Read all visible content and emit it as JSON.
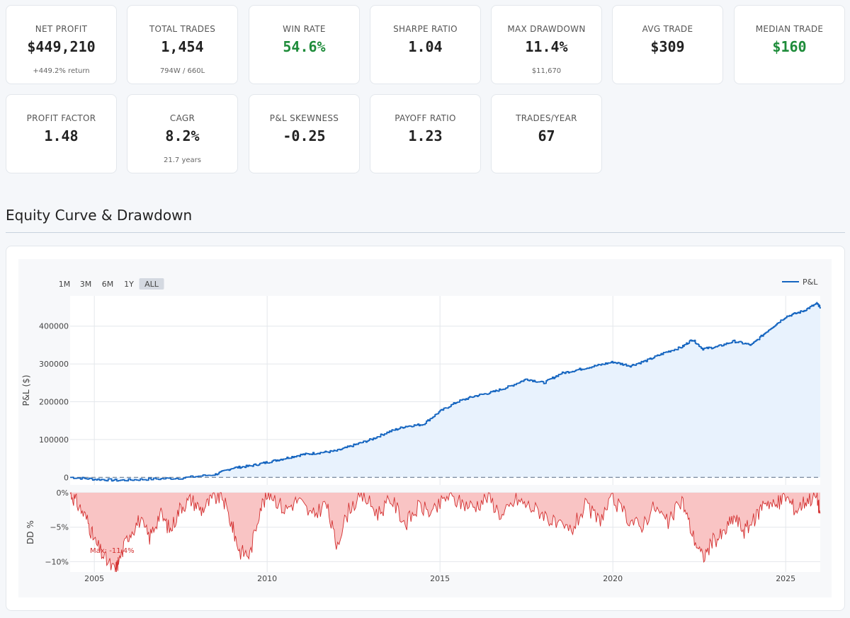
{
  "metrics_row1": [
    {
      "key": "net-profit",
      "label": "NET PROFIT",
      "value": "$449,210",
      "sub": "+449.2% return",
      "color": ""
    },
    {
      "key": "total-trades",
      "label": "TOTAL TRADES",
      "value": "1,454",
      "sub": "794W / 660L",
      "color": ""
    },
    {
      "key": "win-rate",
      "label": "WIN RATE",
      "value": "54.6%",
      "sub": "",
      "color": "green"
    },
    {
      "key": "sharpe-ratio",
      "label": "SHARPE RATIO",
      "value": "1.04",
      "sub": "",
      "color": ""
    },
    {
      "key": "max-drawdown",
      "label": "MAX DRAWDOWN",
      "value": "11.4%",
      "sub": "$11,670",
      "color": ""
    },
    {
      "key": "avg-trade",
      "label": "AVG TRADE",
      "value": "$309",
      "sub": "",
      "color": ""
    },
    {
      "key": "median-trade",
      "label": "MEDIAN TRADE",
      "value": "$160",
      "sub": "",
      "color": "green"
    }
  ],
  "metrics_row2": [
    {
      "key": "profit-factor",
      "label": "PROFIT FACTOR",
      "value": "1.48",
      "sub": "",
      "color": ""
    },
    {
      "key": "cagr",
      "label": "CAGR",
      "value": "8.2%",
      "sub": "21.7 years",
      "color": ""
    },
    {
      "key": "pnl-skewness",
      "label": "P&L SKEWNESS",
      "value": "-0.25",
      "sub": "",
      "color": ""
    },
    {
      "key": "payoff-ratio",
      "label": "PAYOFF RATIO",
      "value": "1.23",
      "sub": "",
      "color": ""
    },
    {
      "key": "trades-year",
      "label": "TRADES/YEAR",
      "value": "67",
      "sub": "",
      "color": ""
    }
  ],
  "section": {
    "title": "Equity Curve & Drawdown"
  },
  "colors": {
    "equity_line": "#1565c0",
    "equity_fill": "#e8f2fd",
    "drawdown_line": "#d32f2f",
    "drawdown_fill": "#f9c4c4",
    "green": "#1e8c3a"
  },
  "chart_data": {
    "type": "line",
    "title": "Equity Curve & Drawdown",
    "range_selector": [
      "1M",
      "3M",
      "6M",
      "1Y",
      "ALL"
    ],
    "range_selected": "ALL",
    "legend": [
      "P&L"
    ],
    "legend_position": "top-right",
    "x_ticks": [
      "2005",
      "2010",
      "2015",
      "2020",
      "2025"
    ],
    "x_range": [
      2004.3,
      2026.0
    ],
    "equity": {
      "ylabel": "P&L ($)",
      "ylim": [
        -20000,
        480000
      ],
      "y_ticks": [
        0,
        100000,
        200000,
        300000,
        400000
      ],
      "y_tick_labels": [
        "0",
        "100000",
        "200000",
        "300000",
        "400000"
      ],
      "zero_line": "dashed",
      "series": [
        {
          "name": "P&L",
          "x": [
            2004.3,
            2005.0,
            2005.7,
            2006.5,
            2007.5,
            2008.5,
            2009.0,
            2009.5,
            2010.0,
            2010.5,
            2011.0,
            2011.5,
            2012.0,
            2012.5,
            2013.0,
            2013.5,
            2014.0,
            2014.5,
            2015.0,
            2015.5,
            2016.0,
            2016.5,
            2017.0,
            2017.5,
            2018.0,
            2018.5,
            2019.0,
            2019.5,
            2020.0,
            2020.5,
            2021.0,
            2021.5,
            2022.0,
            2022.3,
            2022.6,
            2023.0,
            2023.5,
            2024.0,
            2024.5,
            2025.0,
            2025.5,
            2025.9,
            2026.0
          ],
          "y": [
            0,
            -5000,
            -8000,
            -5000,
            -2000,
            8000,
            25000,
            30000,
            40000,
            50000,
            60000,
            65000,
            70000,
            85000,
            100000,
            120000,
            135000,
            140000,
            175000,
            200000,
            215000,
            225000,
            240000,
            260000,
            250000,
            275000,
            285000,
            295000,
            305000,
            295000,
            310000,
            330000,
            345000,
            365000,
            340000,
            345000,
            360000,
            350000,
            390000,
            425000,
            440000,
            460000,
            450000
          ]
        }
      ]
    },
    "drawdown": {
      "ylabel": "DD %",
      "ylim": [
        -11.5,
        0
      ],
      "y_ticks": [
        0,
        -5,
        -10
      ],
      "y_tick_labels": [
        "0%",
        "−5%",
        "−10%"
      ],
      "annotation": "Max: -11.4%",
      "series": [
        {
          "name": "DD %",
          "x": [
            2004.3,
            2004.5,
            2004.8,
            2005.0,
            2005.3,
            2005.6,
            2005.7,
            2006.0,
            2006.3,
            2006.6,
            2006.9,
            2007.2,
            2007.5,
            2007.8,
            2008.1,
            2008.4,
            2008.7,
            2009.0,
            2009.2,
            2009.5,
            2009.8,
            2010.1,
            2010.5,
            2010.9,
            2011.3,
            2011.7,
            2012.0,
            2012.4,
            2012.8,
            2013.2,
            2013.6,
            2014.0,
            2014.4,
            2014.8,
            2015.2,
            2015.6,
            2016.0,
            2016.4,
            2016.8,
            2017.2,
            2017.6,
            2018.0,
            2018.4,
            2018.8,
            2019.2,
            2019.6,
            2020.0,
            2020.4,
            2020.8,
            2021.2,
            2021.6,
            2022.0,
            2022.3,
            2022.6,
            2022.9,
            2023.2,
            2023.5,
            2023.8,
            2024.1,
            2024.4,
            2024.7,
            2025.0,
            2025.3,
            2025.6,
            2025.9,
            2026.0
          ],
          "y": [
            0,
            -1.5,
            -4.0,
            -7.0,
            -9.5,
            -11.4,
            -10.0,
            -6.0,
            -4.0,
            -6.5,
            -3.0,
            -5.5,
            -2.0,
            -1.0,
            -2.5,
            -1.0,
            -0.5,
            -5.0,
            -8.5,
            -9.0,
            -2.0,
            0,
            -2.5,
            -1.0,
            -3.5,
            -1.5,
            -7.5,
            -2.0,
            -0.5,
            -3.0,
            -1.0,
            -4.5,
            -2.0,
            -3.0,
            -0.5,
            -1.5,
            -2.0,
            -0.5,
            -3.5,
            -1.0,
            -2.0,
            -3.0,
            -5.0,
            -5.5,
            -2.0,
            -4.0,
            -1.0,
            -3.5,
            -5.0,
            -2.0,
            -4.5,
            -1.0,
            -6.0,
            -9.5,
            -7.0,
            -6.0,
            -3.5,
            -5.5,
            -4.0,
            -1.0,
            -2.0,
            -0.5,
            -2.5,
            -1.0,
            -0.5,
            -3.0
          ]
        }
      ]
    }
  }
}
